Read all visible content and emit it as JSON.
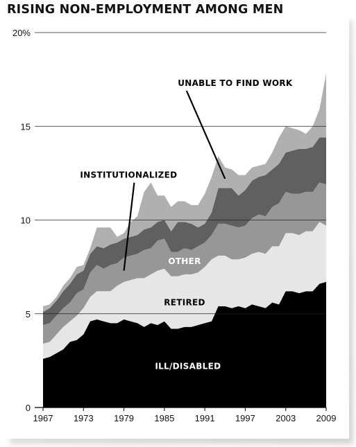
{
  "chart_data": {
    "type": "area",
    "stacked": true,
    "title": "RISING NON-EMPLOYMENT AMONG MEN",
    "ylim": [
      0,
      20
    ],
    "y_ticks": [
      {
        "value": 0,
        "label": "0"
      },
      {
        "value": 5,
        "label": "5"
      },
      {
        "value": 10,
        "label": "10"
      },
      {
        "value": 15,
        "label": "15"
      },
      {
        "value": 20,
        "label": "20%"
      }
    ],
    "x_ticks": [
      "1967",
      "1973",
      "1979",
      "1985",
      "1991",
      "1997",
      "2003",
      "2009"
    ],
    "x": [
      1967,
      1968,
      1969,
      1970,
      1971,
      1972,
      1973,
      1974,
      1975,
      1976,
      1977,
      1978,
      1979,
      1980,
      1981,
      1982,
      1983,
      1984,
      1985,
      1986,
      1987,
      1988,
      1989,
      1990,
      1991,
      1992,
      1993,
      1994,
      1995,
      1996,
      1997,
      1998,
      1999,
      2000,
      2001,
      2002,
      2003,
      2004,
      2005,
      2006,
      2007,
      2008,
      2009
    ],
    "series": [
      {
        "name": "ILL/DISABLED",
        "color": "#000000",
        "values": [
          2.6,
          2.7,
          2.9,
          3.1,
          3.5,
          3.6,
          3.9,
          4.6,
          4.7,
          4.6,
          4.5,
          4.5,
          4.7,
          4.6,
          4.5,
          4.3,
          4.5,
          4.4,
          4.6,
          4.2,
          4.2,
          4.3,
          4.3,
          4.4,
          4.5,
          4.6,
          5.4,
          5.4,
          5.3,
          5.4,
          5.3,
          5.5,
          5.4,
          5.3,
          5.6,
          5.5,
          6.2,
          6.2,
          6.1,
          6.2,
          6.2,
          6.6,
          6.7
        ]
      },
      {
        "name": "RETIRED",
        "color": "#e6e6e6",
        "values": [
          0.8,
          0.8,
          1.0,
          1.2,
          1.1,
          1.3,
          1.4,
          1.3,
          1.5,
          1.6,
          1.7,
          2.0,
          2.0,
          2.2,
          2.4,
          2.6,
          2.6,
          2.9,
          2.8,
          2.8,
          2.8,
          2.8,
          2.8,
          2.8,
          3.0,
          3.3,
          2.7,
          2.7,
          2.6,
          2.5,
          2.7,
          2.7,
          2.9,
          2.9,
          3.0,
          3.1,
          3.1,
          3.1,
          3.1,
          3.2,
          3.2,
          3.3,
          3.0
        ]
      },
      {
        "name": "OTHER",
        "color": "#979797",
        "values": [
          1.0,
          1.0,
          1.0,
          1.0,
          1.0,
          1.2,
          1.0,
          1.3,
          1.4,
          1.2,
          1.4,
          1.2,
          1.3,
          1.3,
          1.3,
          1.5,
          1.4,
          1.6,
          1.6,
          1.3,
          1.3,
          1.4,
          1.3,
          1.4,
          1.3,
          1.3,
          1.7,
          1.7,
          1.8,
          1.7,
          1.7,
          1.9,
          2.0,
          2.0,
          2.1,
          2.3,
          2.2,
          2.1,
          2.2,
          2.1,
          2.1,
          2.1,
          2.2
        ]
      },
      {
        "name": "INSTITUTIONALIZED",
        "color": "#606060",
        "values": [
          0.7,
          0.8,
          0.8,
          0.9,
          1.0,
          1.0,
          1.0,
          1.0,
          1.0,
          1.1,
          1.1,
          1.1,
          1.0,
          1.0,
          1.0,
          1.1,
          1.1,
          1.0,
          1.0,
          1.1,
          1.6,
          1.4,
          1.4,
          1.0,
          1.0,
          1.2,
          1.9,
          1.9,
          2.0,
          1.7,
          1.9,
          2.0,
          2.0,
          2.2,
          2.0,
          2.1,
          2.1,
          2.3,
          2.4,
          2.3,
          2.4,
          2.4,
          2.5
        ]
      },
      {
        "name": "UNABLE TO FIND WORK",
        "color": "#b0b0b0",
        "values": [
          0.3,
          0.2,
          0.2,
          0.3,
          0.3,
          0.4,
          0.3,
          0.3,
          1.0,
          1.1,
          0.9,
          0.3,
          0.3,
          0.8,
          1.0,
          2.0,
          2.4,
          1.4,
          1.3,
          1.3,
          1.1,
          1.1,
          1.0,
          1.2,
          1.6,
          1.9,
          1.7,
          1.1,
          1.0,
          1.1,
          0.8,
          0.7,
          0.6,
          0.6,
          0.9,
          1.4,
          1.4,
          1.2,
          1.0,
          0.8,
          1.1,
          1.5,
          3.4
        ]
      }
    ],
    "annotations": [
      {
        "text": "UNABLE TO FIND WORK",
        "series": "UNABLE TO FIND WORK"
      },
      {
        "text": "INSTITUTIONALIZED",
        "series": "INSTITUTIONALIZED"
      },
      {
        "text": "OTHER",
        "series": "OTHER"
      },
      {
        "text": "RETIRED",
        "series": "RETIRED"
      },
      {
        "text": "ILL/DISABLED",
        "series": "ILL/DISABLED"
      }
    ],
    "grid": true,
    "legend": "none"
  }
}
